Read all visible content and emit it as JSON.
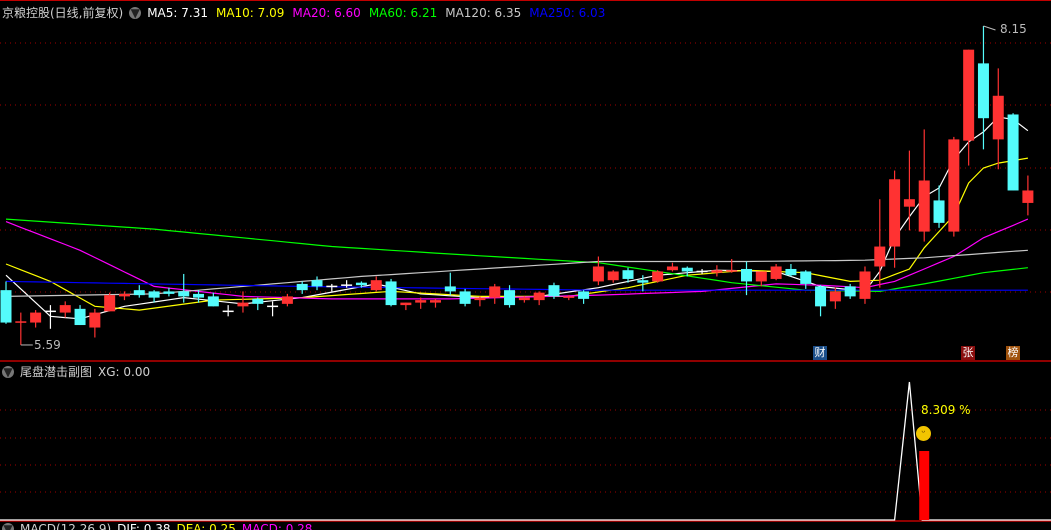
{
  "header": {
    "title": "京粮控股(日线,前复权)",
    "ma": [
      {
        "label": "MA5: 7.31",
        "color": "#FFFFFF"
      },
      {
        "label": "MA10: 7.09",
        "color": "#FFFF00"
      },
      {
        "label": "MA20: 6.60",
        "color": "#FF00FF"
      },
      {
        "label": "MA60: 6.21",
        "color": "#00FF00"
      },
      {
        "label": "MA120: 6.35",
        "color": "#C8C8C8"
      },
      {
        "label": "MA250: 6.03",
        "color": "#0000FF"
      }
    ]
  },
  "sub_panel": {
    "title": "尾盘潜击副图",
    "value_label": "XG: 0.00",
    "annotation": "8.309 %"
  },
  "macd_panel": {
    "title": "MACD(12,26,9)",
    "dif": "DIF: 0.38",
    "dea": "DEA: 0.25",
    "macd": "MACD: 0.28"
  },
  "markers": {
    "cai": "财",
    "zhang": "张",
    "bang": "榜"
  },
  "colors": {
    "up": "#FF3232",
    "down": "#54FCFC",
    "doji": "#FFFFFF",
    "divider": "#C00000",
    "grid": "#A00000"
  },
  "chart_data": {
    "type": "candlestick",
    "high_label": "8.15",
    "low_label": "5.59",
    "ylim": [
      5.59,
      8.15
    ],
    "ohlc": [
      [
        6.03,
        5.77,
        6.1,
        5.76
      ],
      [
        5.77,
        5.78,
        5.85,
        5.59
      ],
      [
        5.77,
        5.85,
        5.87,
        5.73
      ],
      [
        5.86,
        5.86,
        5.91,
        5.72
      ],
      [
        5.85,
        5.91,
        5.94,
        5.81
      ],
      [
        5.88,
        5.75,
        5.91,
        5.75
      ],
      [
        5.73,
        5.85,
        5.88,
        5.65
      ],
      [
        5.86,
        5.99,
        6.01,
        5.86
      ],
      [
        5.98,
        6.0,
        6.02,
        5.95
      ],
      [
        6.03,
        5.99,
        6.07,
        5.97
      ],
      [
        6.02,
        5.97,
        6.03,
        5.93
      ],
      [
        6.02,
        6.0,
        6.05,
        5.98
      ],
      [
        6.02,
        5.98,
        6.16,
        5.93
      ],
      [
        6.0,
        5.97,
        6.03,
        5.93
      ],
      [
        5.98,
        5.9,
        6.01,
        5.9
      ],
      [
        5.86,
        5.86,
        5.91,
        5.82
      ],
      [
        5.9,
        5.93,
        6.02,
        5.85
      ],
      [
        5.96,
        5.92,
        5.97,
        5.87
      ],
      [
        5.9,
        5.9,
        5.94,
        5.82
      ],
      [
        5.92,
        5.98,
        6.0,
        5.9
      ],
      [
        6.08,
        6.03,
        6.1,
        6.0
      ],
      [
        6.11,
        6.06,
        6.14,
        6.03
      ],
      [
        6.06,
        6.06,
        6.08,
        6.02
      ],
      [
        6.07,
        6.07,
        6.11,
        6.05
      ],
      [
        6.09,
        6.07,
        6.1,
        6.05
      ],
      [
        6.03,
        6.11,
        6.14,
        6.02
      ],
      [
        6.1,
        5.91,
        6.12,
        5.9
      ],
      [
        5.91,
        5.93,
        5.93,
        5.87
      ],
      [
        5.93,
        5.95,
        5.97,
        5.88
      ],
      [
        5.93,
        5.95,
        5.96,
        5.89
      ],
      [
        6.06,
        6.02,
        6.17,
        5.99
      ],
      [
        6.02,
        5.92,
        6.04,
        5.9
      ],
      [
        5.95,
        5.97,
        5.98,
        5.9
      ],
      [
        5.97,
        6.06,
        6.08,
        5.92
      ],
      [
        6.03,
        5.91,
        6.07,
        5.89
      ],
      [
        5.95,
        5.97,
        5.98,
        5.93
      ],
      [
        5.95,
        6.01,
        6.02,
        5.91
      ],
      [
        6.07,
        5.98,
        6.09,
        5.96
      ],
      [
        5.97,
        5.98,
        5.99,
        5.95
      ],
      [
        6.02,
        5.96,
        6.03,
        5.92
      ],
      [
        6.1,
        6.22,
        6.3,
        6.07
      ],
      [
        6.11,
        6.18,
        6.19,
        6.09
      ],
      [
        6.19,
        6.12,
        6.21,
        6.09
      ],
      [
        6.11,
        6.09,
        6.15,
        6.02
      ],
      [
        6.1,
        6.18,
        6.19,
        6.09
      ],
      [
        6.19,
        6.22,
        6.25,
        6.18
      ],
      [
        6.21,
        6.18,
        6.22,
        6.14
      ],
      [
        6.18,
        6.18,
        6.2,
        6.16
      ],
      [
        6.17,
        6.19,
        6.23,
        6.14
      ],
      [
        6.18,
        6.19,
        6.28,
        6.17
      ],
      [
        6.2,
        6.1,
        6.26,
        5.99
      ],
      [
        6.1,
        6.18,
        6.18,
        6.06
      ],
      [
        6.12,
        6.22,
        6.24,
        6.11
      ],
      [
        6.2,
        6.15,
        6.24,
        6.14
      ],
      [
        6.18,
        6.08,
        6.19,
        6.04
      ],
      [
        6.06,
        5.9,
        6.07,
        5.82
      ],
      [
        5.94,
        6.02,
        6.05,
        5.88
      ],
      [
        6.06,
        5.98,
        6.08,
        5.96
      ],
      [
        5.96,
        6.18,
        6.22,
        5.92
      ],
      [
        6.22,
        6.38,
        6.76,
        6.05
      ],
      [
        6.38,
        6.92,
        6.99,
        6.21
      ],
      [
        6.7,
        6.76,
        7.15,
        6.51
      ],
      [
        6.5,
        6.91,
        7.32,
        6.42
      ],
      [
        6.75,
        6.57,
        6.87,
        6.53
      ],
      [
        6.5,
        7.24,
        7.26,
        6.46
      ],
      [
        7.23,
        7.96,
        7.96,
        7.03
      ],
      [
        7.85,
        7.41,
        8.15,
        7.16
      ],
      [
        7.24,
        7.59,
        7.81,
        7.0
      ],
      [
        7.44,
        6.83,
        7.45,
        6.83
      ],
      [
        6.73,
        6.83,
        6.95,
        6.63
      ]
    ],
    "ma_lines": [
      {
        "name": "MA5",
        "color": "#FFFFFF",
        "points": [
          [
            0,
            6.15
          ],
          [
            3,
            5.82
          ],
          [
            5,
            5.8
          ],
          [
            8,
            5.9
          ],
          [
            12,
            5.97
          ],
          [
            16,
            5.92
          ],
          [
            20,
            5.97
          ],
          [
            25,
            6.08
          ],
          [
            28,
            6.0
          ],
          [
            32,
            5.97
          ],
          [
            36,
            5.98
          ],
          [
            40,
            6.05
          ],
          [
            44,
            6.15
          ],
          [
            48,
            6.19
          ],
          [
            52,
            6.18
          ],
          [
            55,
            6.06
          ],
          [
            58,
            6.02
          ],
          [
            59,
            6.18
          ],
          [
            60,
            6.45
          ],
          [
            61,
            6.62
          ],
          [
            62,
            6.78
          ],
          [
            63,
            6.85
          ],
          [
            64,
            7.08
          ],
          [
            65,
            7.22
          ],
          [
            66,
            7.3
          ],
          [
            67,
            7.42
          ],
          [
            68,
            7.4
          ],
          [
            69,
            7.31
          ]
        ]
      },
      {
        "name": "MA10",
        "color": "#FFFF00",
        "points": [
          [
            0,
            6.24
          ],
          [
            3,
            6.1
          ],
          [
            6,
            5.9
          ],
          [
            9,
            5.87
          ],
          [
            14,
            5.95
          ],
          [
            20,
            5.97
          ],
          [
            26,
            6.02
          ],
          [
            32,
            5.98
          ],
          [
            38,
            5.98
          ],
          [
            42,
            6.05
          ],
          [
            46,
            6.15
          ],
          [
            50,
            6.19
          ],
          [
            54,
            6.17
          ],
          [
            57,
            6.1
          ],
          [
            59,
            6.11
          ],
          [
            61,
            6.2
          ],
          [
            62,
            6.37
          ],
          [
            63,
            6.5
          ],
          [
            64,
            6.63
          ],
          [
            65,
            6.89
          ],
          [
            66,
            7.01
          ],
          [
            67,
            7.05
          ],
          [
            68,
            7.07
          ],
          [
            69,
            7.09
          ]
        ]
      },
      {
        "name": "MA20",
        "color": "#FF00FF",
        "points": [
          [
            0,
            6.58
          ],
          [
            5,
            6.35
          ],
          [
            10,
            6.06
          ],
          [
            16,
            5.98
          ],
          [
            22,
            5.96
          ],
          [
            30,
            5.96
          ],
          [
            40,
            5.99
          ],
          [
            47,
            6.02
          ],
          [
            52,
            6.08
          ],
          [
            55,
            6.07
          ],
          [
            58,
            6.05
          ],
          [
            60,
            6.1
          ],
          [
            62,
            6.2
          ],
          [
            64,
            6.3
          ],
          [
            66,
            6.45
          ],
          [
            68,
            6.55
          ],
          [
            69,
            6.6
          ]
        ]
      },
      {
        "name": "MA60",
        "color": "#00FF00",
        "points": [
          [
            0,
            6.6
          ],
          [
            10,
            6.52
          ],
          [
            22,
            6.38
          ],
          [
            30,
            6.32
          ],
          [
            40,
            6.25
          ],
          [
            44,
            6.18
          ],
          [
            49,
            6.09
          ],
          [
            54,
            6.03
          ],
          [
            59,
            6.02
          ],
          [
            62,
            6.08
          ],
          [
            66,
            6.17
          ],
          [
            69,
            6.21
          ]
        ]
      },
      {
        "name": "MA120",
        "color": "#C8C8C8",
        "points": [
          [
            0,
            5.98
          ],
          [
            10,
            6.0
          ],
          [
            24,
            6.14
          ],
          [
            40,
            6.26
          ],
          [
            50,
            6.26
          ],
          [
            58,
            6.27
          ],
          [
            62,
            6.29
          ],
          [
            69,
            6.35
          ]
        ]
      },
      {
        "name": "MA250",
        "color": "#0000FF",
        "points": [
          [
            0,
            6.1
          ],
          [
            20,
            6.06
          ],
          [
            40,
            6.03
          ],
          [
            60,
            6.03
          ],
          [
            69,
            6.03
          ]
        ]
      }
    ],
    "xg_line": {
      "color": "#FFFFFF",
      "spike_index": 61,
      "spike_level": 1.0
    },
    "xg_bar": {
      "color": "#FF0000",
      "index": 62,
      "level": 0.5
    }
  }
}
